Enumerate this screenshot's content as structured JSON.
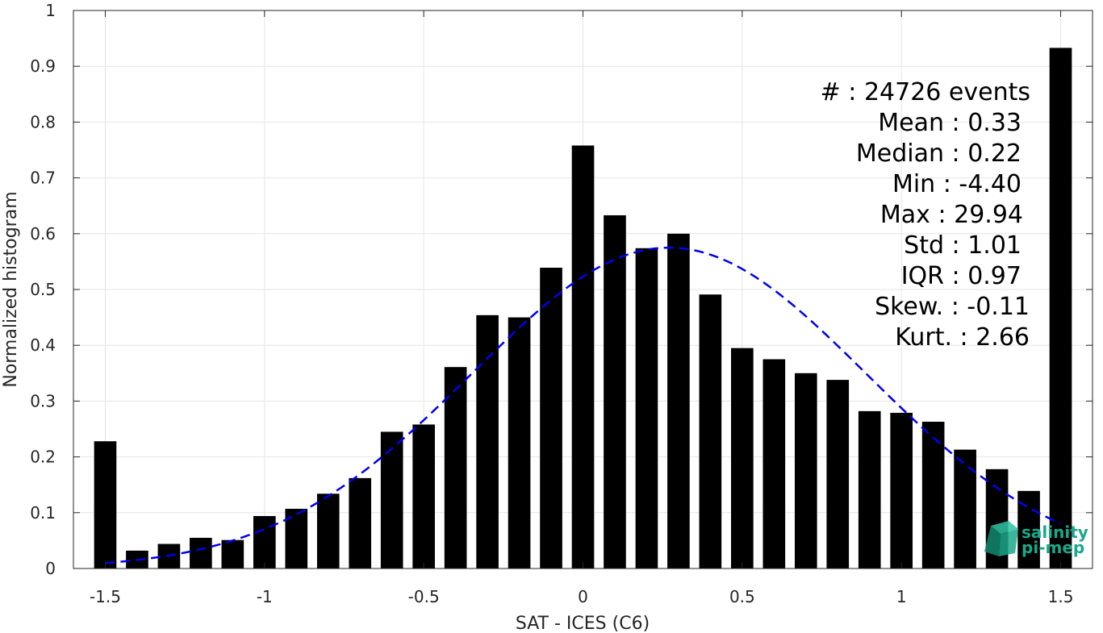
{
  "chart_data": {
    "type": "bar",
    "xlabel": "SAT - ICES (C6)",
    "ylabel": "Normalized histogram",
    "xlim": [
      -1.6,
      1.6
    ],
    "ylim": [
      0,
      1
    ],
    "grid": true,
    "xticks": [
      -1.5,
      -1,
      -0.5,
      0,
      0.5,
      1,
      1.5
    ],
    "xtick_labels": [
      "-1.5",
      "-1",
      "-0.5",
      "0",
      "0.5",
      "1",
      "1.5"
    ],
    "yticks": [
      0,
      0.1,
      0.2,
      0.3,
      0.4,
      0.5,
      0.6,
      0.7,
      0.8,
      0.9,
      1
    ],
    "ytick_labels": [
      "0",
      "0.1",
      "0.2",
      "0.3",
      "0.4",
      "0.5",
      "0.6",
      "0.7",
      "0.8",
      "0.9",
      "1"
    ],
    "bar_color": "#000000",
    "bar_width": 0.07,
    "x": [
      -1.5,
      -1.4,
      -1.3,
      -1.2,
      -1.1,
      -1.0,
      -0.9,
      -0.8,
      -0.7,
      -0.6,
      -0.5,
      -0.4,
      -0.3,
      -0.2,
      -0.1,
      0.0,
      0.1,
      0.2,
      0.3,
      0.4,
      0.5,
      0.6,
      0.7,
      0.8,
      0.9,
      1.0,
      1.1,
      1.2,
      1.3,
      1.4,
      1.5
    ],
    "values": [
      0.228,
      0.032,
      0.044,
      0.055,
      0.051,
      0.094,
      0.107,
      0.134,
      0.162,
      0.245,
      0.258,
      0.361,
      0.454,
      0.45,
      0.539,
      0.758,
      0.633,
      0.574,
      0.6,
      0.491,
      0.395,
      0.375,
      0.35,
      0.338,
      0.282,
      0.279,
      0.263,
      0.213,
      0.178,
      0.139,
      0.933
    ],
    "fit_curve": {
      "style": "dashed",
      "color": "#0000ee",
      "mean": 0.27,
      "peak": 0.575,
      "sigma": 0.62,
      "x_range": [
        -1.5,
        1.5
      ]
    },
    "stats": [
      "#  : 24726 events",
      "Mean : 0.33",
      "Median : 0.22",
      "Min : -4.40",
      "Max : 29.94",
      "Std : 1.01",
      "IQR : 0.97",
      "Skew. : -0.11",
      "Kurt. : 2.66"
    ],
    "logo": {
      "line1": "salinity",
      "line2": "pi-mep",
      "color": "#1aa88a"
    }
  }
}
